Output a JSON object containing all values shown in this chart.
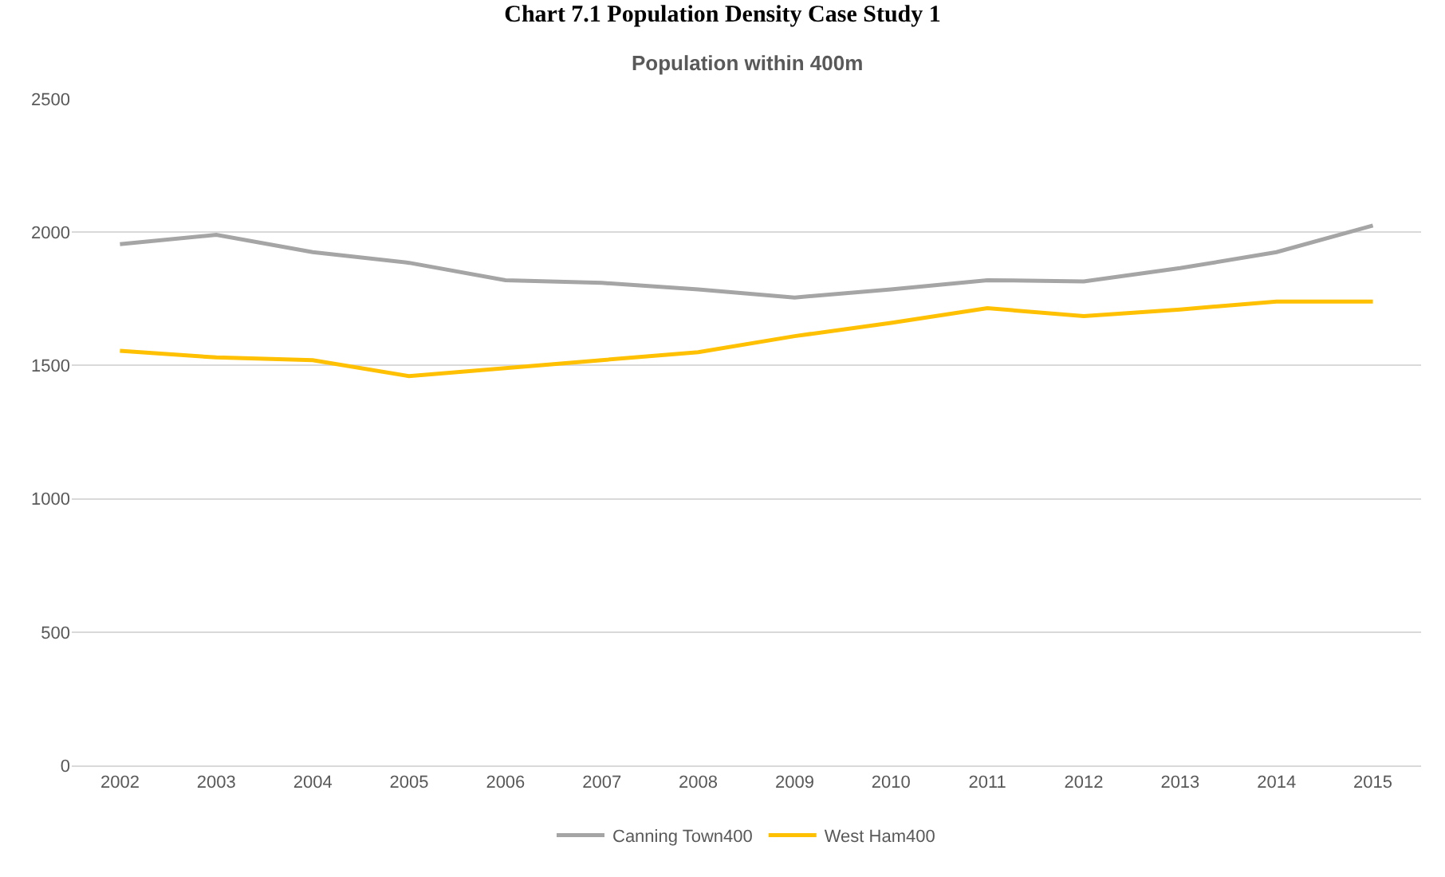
{
  "chart_data": {
    "type": "line",
    "title": "Chart 7.1 Population Density Case Study 1",
    "subtitle": "Population within 400m",
    "categories": [
      "2002",
      "2003",
      "2004",
      "2005",
      "2006",
      "2007",
      "2008",
      "2009",
      "2010",
      "2011",
      "2012",
      "2013",
      "2014",
      "2015"
    ],
    "series": [
      {
        "name": "Canning Town400",
        "color": "#a5a5a5",
        "values": [
          1955,
          1990,
          1925,
          1885,
          1820,
          1810,
          1785,
          1755,
          1785,
          1820,
          1815,
          1865,
          1925,
          2025
        ]
      },
      {
        "name": "West Ham400",
        "color": "#ffc000",
        "values": [
          1555,
          1530,
          1520,
          1460,
          1490,
          1520,
          1550,
          1610,
          1660,
          1715,
          1685,
          1710,
          1740,
          1740
        ]
      }
    ],
    "ylim": [
      0,
      2500
    ],
    "yticks": [
      0,
      500,
      1000,
      1500,
      2000,
      2500
    ],
    "grid": "y",
    "legend": "bottom",
    "marker": "none",
    "line_style": "solid"
  }
}
